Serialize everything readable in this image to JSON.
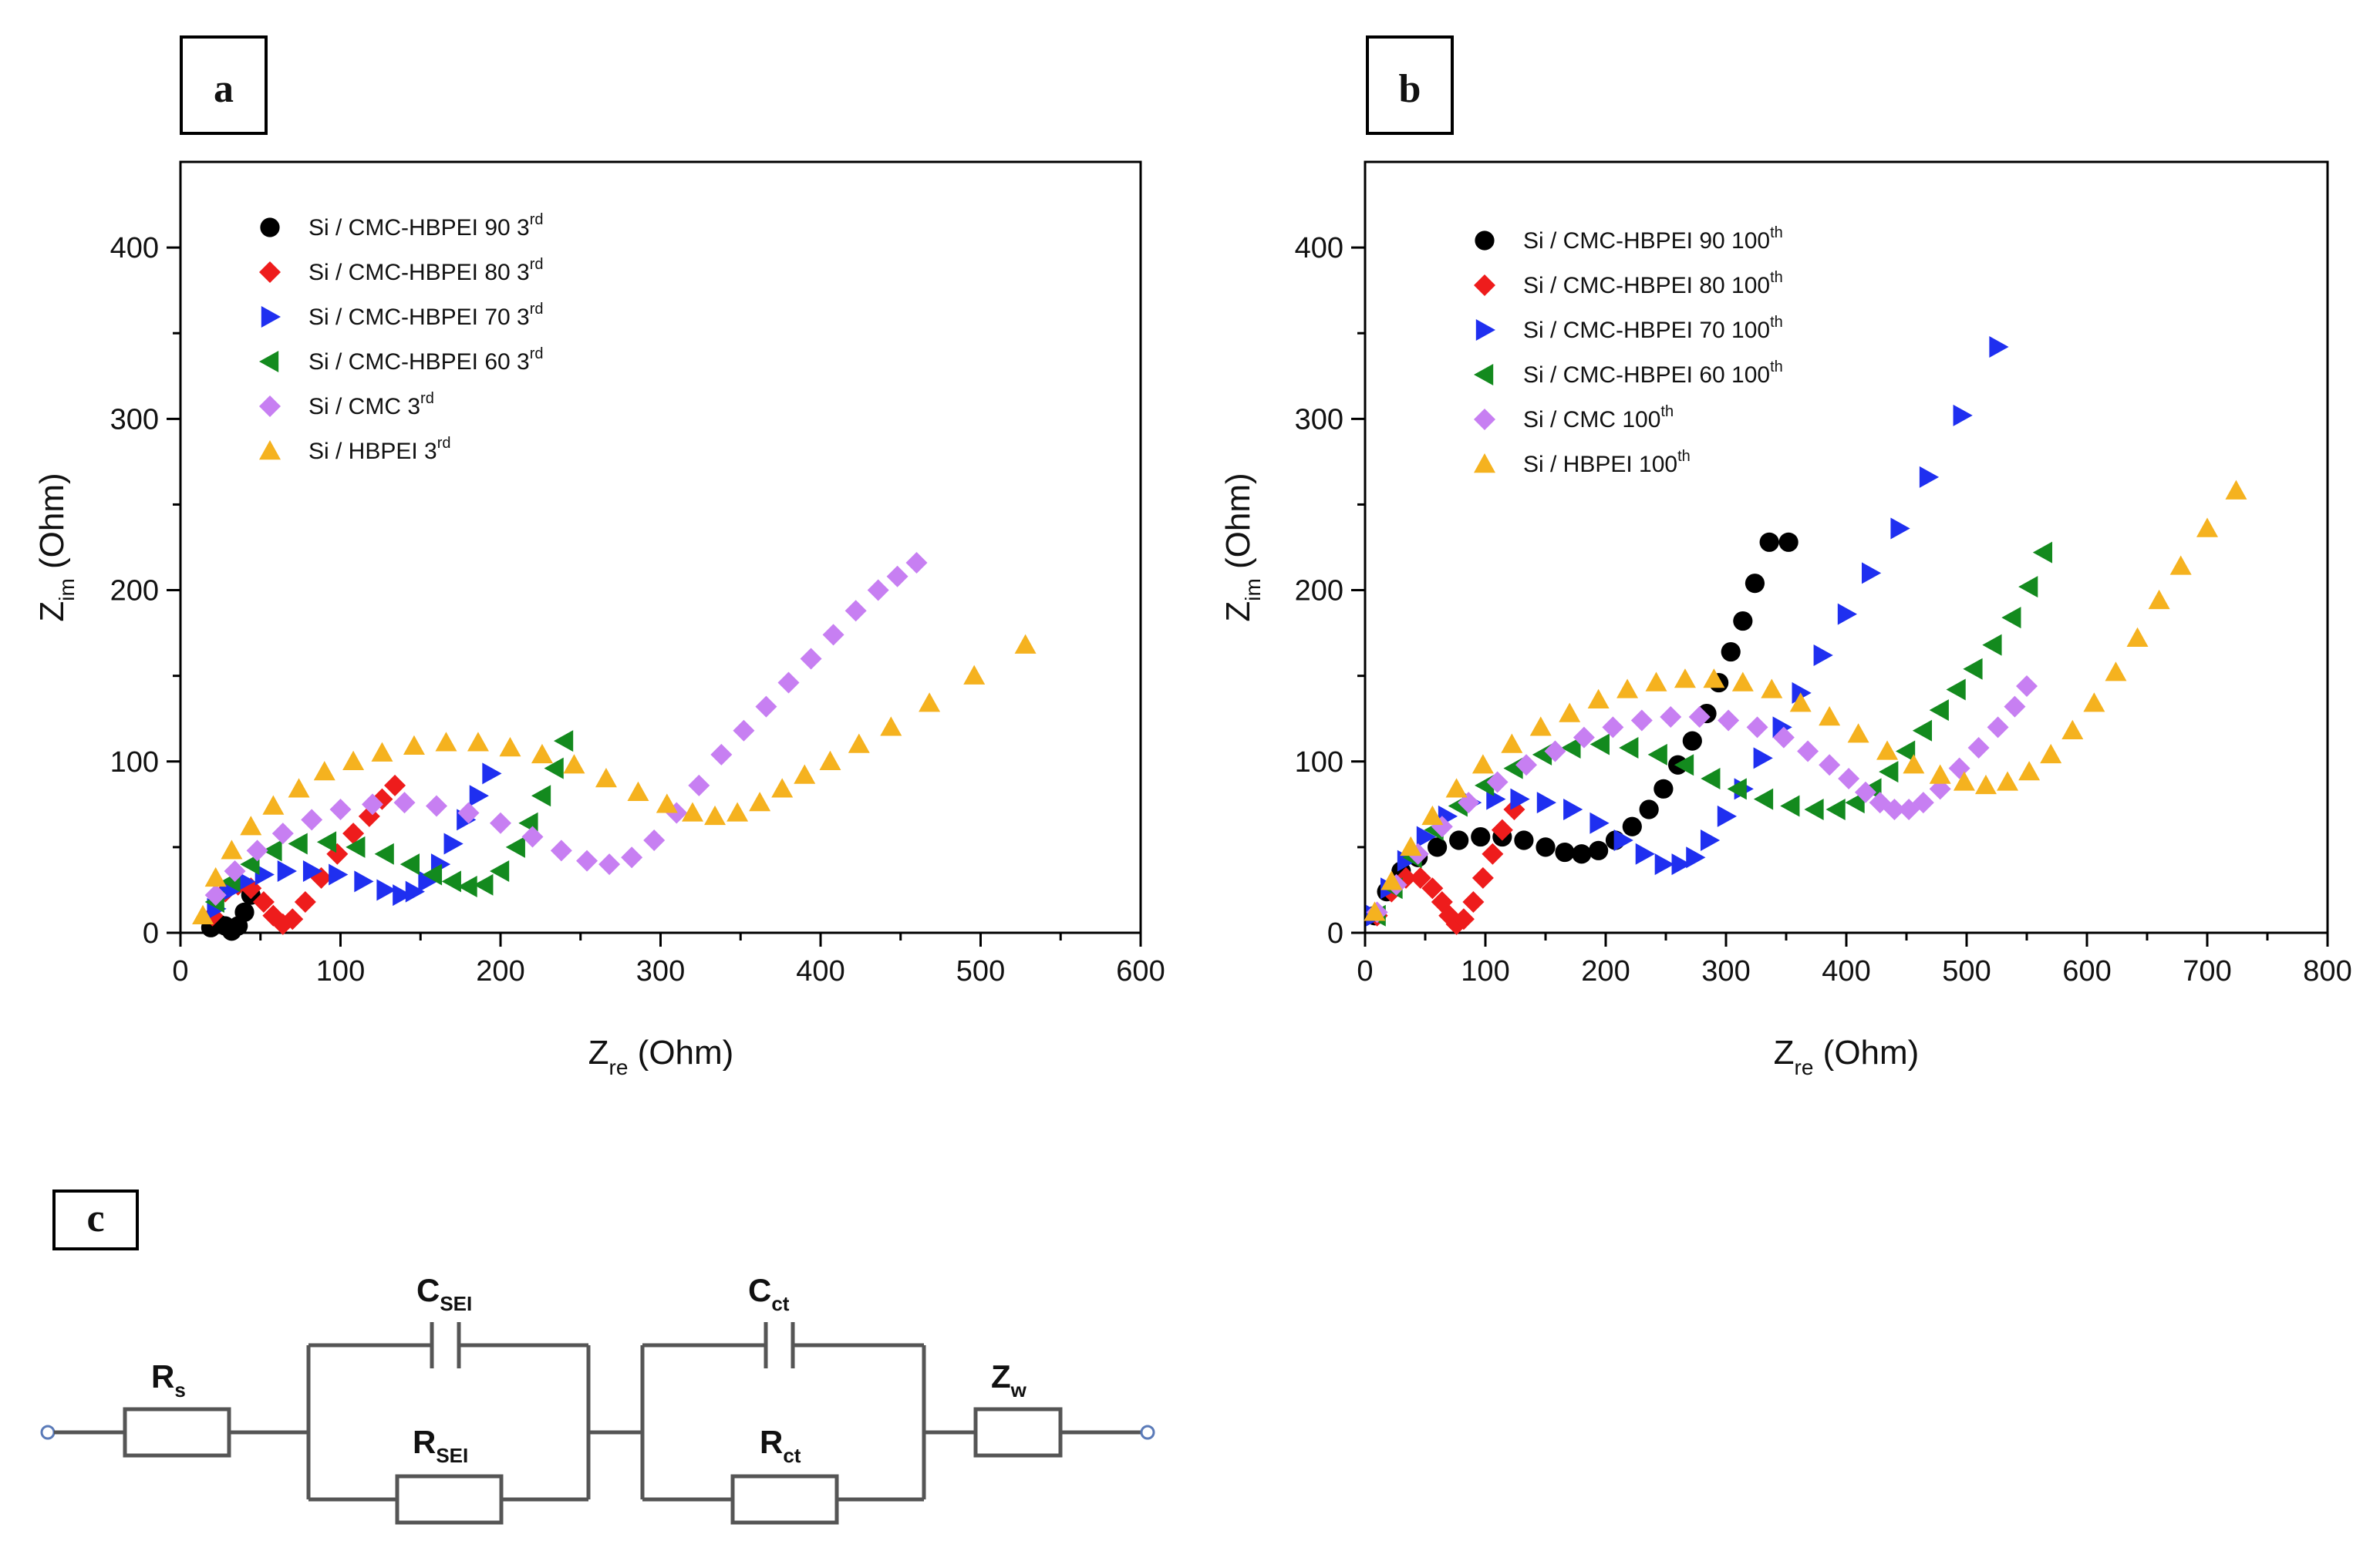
{
  "panels": [
    {
      "id": "a",
      "label": "a"
    },
    {
      "id": "b",
      "label": "b"
    },
    {
      "id": "c",
      "label": "c"
    }
  ],
  "colors": {
    "black": "#000000",
    "red": "#ee1c1c",
    "blue": "#1f2ff0",
    "green": "#138a1e",
    "violet": "#c77ff2",
    "orange": "#f5b21f"
  },
  "chart_data": [
    {
      "id": "a",
      "type": "scatter",
      "title": "",
      "xlabel": "Z",
      "xlabel_sub": "re",
      "xlabel_unit": " (Ohm)",
      "ylabel": "Z",
      "ylabel_sub": "im",
      "ylabel_unit": " (Ohm)",
      "xlim": [
        0,
        600
      ],
      "ylim": [
        0,
        450
      ],
      "xticks": [
        0,
        100,
        200,
        300,
        400,
        500,
        600
      ],
      "yticks": [
        0,
        100,
        200,
        300,
        400
      ],
      "legend_position": "top-left",
      "series": [
        {
          "name": "Si / CMC-HBPEI 90 3",
          "sup": "rd",
          "color": "black",
          "marker": "circle",
          "x": [
            19,
            24,
            28,
            32,
            36,
            40,
            44
          ],
          "y": [
            3,
            5,
            4,
            1,
            4,
            12,
            22
          ]
        },
        {
          "name": "Si / CMC-HBPEI 80 3",
          "sup": "rd",
          "color": "red",
          "marker": "diamond",
          "x": [
            20,
            28,
            36,
            44,
            52,
            58,
            64,
            70,
            78,
            88,
            98,
            108,
            118,
            126,
            134
          ],
          "y": [
            10,
            24,
            28,
            26,
            18,
            10,
            5,
            8,
            18,
            32,
            46,
            58,
            68,
            78,
            86
          ]
        },
        {
          "name": "Si / CMC-HBPEI 70 3",
          "sup": "rd",
          "color": "blue",
          "marker": "tri-right",
          "x": [
            22,
            30,
            40,
            52,
            66,
            82,
            98,
            114,
            128,
            138,
            146,
            154,
            162,
            170,
            178,
            186,
            194
          ],
          "y": [
            14,
            24,
            30,
            34,
            36,
            36,
            34,
            30,
            25,
            22,
            24,
            30,
            40,
            52,
            66,
            80,
            93
          ]
        },
        {
          "name": "Si / CMC-HBPEI 60 3",
          "sup": "rd",
          "color": "green",
          "marker": "tri-left",
          "x": [
            22,
            32,
            44,
            58,
            74,
            92,
            110,
            128,
            144,
            158,
            170,
            180,
            190,
            200,
            210,
            218,
            226,
            234,
            240
          ],
          "y": [
            18,
            30,
            40,
            48,
            52,
            53,
            50,
            46,
            40,
            34,
            30,
            27,
            28,
            36,
            50,
            64,
            80,
            96,
            112
          ]
        },
        {
          "name": "Si / CMC 3",
          "sup": "rd",
          "color": "violet",
          "marker": "diamond",
          "x": [
            22,
            34,
            48,
            64,
            82,
            100,
            120,
            140,
            160,
            180,
            200,
            220,
            238,
            254,
            268,
            282,
            296,
            310,
            324,
            338,
            352,
            366,
            380,
            394,
            408,
            422,
            436,
            448,
            460
          ],
          "y": [
            22,
            36,
            48,
            58,
            66,
            72,
            75,
            76,
            74,
            70,
            64,
            56,
            48,
            42,
            40,
            44,
            54,
            70,
            86,
            104,
            118,
            132,
            146,
            160,
            174,
            188,
            200,
            208,
            216
          ]
        },
        {
          "name": "Si / HBPEI 3",
          "sup": "rd",
          "color": "orange",
          "marker": "tri-up",
          "x": [
            14,
            22,
            32,
            44,
            58,
            74,
            90,
            108,
            126,
            146,
            166,
            186,
            206,
            226,
            246,
            266,
            286,
            304,
            320,
            334,
            348,
            362,
            376,
            390,
            406,
            424,
            444,
            468,
            496,
            528
          ],
          "y": [
            10,
            32,
            48,
            62,
            74,
            84,
            94,
            100,
            105,
            109,
            111,
            111,
            108,
            104,
            98,
            90,
            82,
            75,
            70,
            68,
            70,
            76,
            84,
            92,
            100,
            110,
            120,
            134,
            150,
            168
          ]
        }
      ]
    },
    {
      "id": "b",
      "type": "scatter",
      "title": "",
      "xlabel": "Z",
      "xlabel_sub": "re",
      "xlabel_unit": " (Ohm)",
      "ylabel": "Z",
      "ylabel_sub": "im",
      "ylabel_unit": " (Ohm)",
      "xlim": [
        0,
        800
      ],
      "ylim": [
        0,
        450
      ],
      "xticks": [
        0,
        100,
        200,
        300,
        400,
        500,
        600,
        700,
        800
      ],
      "yticks": [
        0,
        100,
        200,
        300,
        400
      ],
      "legend_position": "top-left",
      "series": [
        {
          "name": "Si / CMC-HBPEI 90 100",
          "sup": "th",
          "color": "black",
          "marker": "circle",
          "x": [
            8,
            18,
            30,
            44,
            60,
            78,
            96,
            114,
            132,
            150,
            166,
            180,
            194,
            208,
            222,
            236,
            248,
            260,
            272,
            284,
            294,
            304,
            314,
            324,
            336,
            352
          ],
          "y": [
            10,
            24,
            36,
            44,
            50,
            54,
            56,
            56,
            54,
            50,
            47,
            46,
            48,
            54,
            62,
            72,
            84,
            98,
            112,
            128,
            146,
            164,
            182,
            204,
            228,
            228
          ]
        },
        {
          "name": "Si / CMC-HBPEI 80 100",
          "sup": "th",
          "color": "red",
          "marker": "diamond",
          "x": [
            10,
            22,
            34,
            46,
            56,
            64,
            70,
            76,
            82,
            90,
            98,
            106,
            114,
            124
          ],
          "y": [
            10,
            24,
            32,
            32,
            26,
            18,
            10,
            5,
            8,
            18,
            32,
            46,
            60,
            72
          ]
        },
        {
          "name": "Si / CMC-HBPEI 70 100",
          "sup": "th",
          "color": "blue",
          "marker": "tri-right",
          "x": [
            8,
            20,
            34,
            50,
            68,
            88,
            108,
            128,
            150,
            172,
            194,
            214,
            232,
            248,
            262,
            274,
            286,
            300,
            314,
            330,
            346,
            362,
            380,
            400,
            420,
            444,
            468,
            496,
            526
          ],
          "y": [
            10,
            26,
            42,
            56,
            68,
            76,
            78,
            78,
            76,
            72,
            64,
            54,
            46,
            40,
            40,
            44,
            54,
            68,
            84,
            102,
            120,
            140,
            162,
            186,
            210,
            236,
            266,
            302,
            342
          ]
        },
        {
          "name": "Si / CMC-HBPEI 60 100",
          "sup": "th",
          "color": "green",
          "marker": "tri-left",
          "x": [
            10,
            24,
            40,
            58,
            78,
            100,
            124,
            148,
            172,
            196,
            220,
            244,
            266,
            288,
            310,
            332,
            354,
            374,
            392,
            408,
            422,
            436,
            450,
            464,
            478,
            492,
            506,
            522,
            538,
            552,
            564
          ],
          "y": [
            10,
            26,
            44,
            60,
            74,
            86,
            96,
            104,
            108,
            110,
            108,
            104,
            98,
            90,
            84,
            78,
            74,
            72,
            72,
            76,
            84,
            94,
            106,
            118,
            130,
            142,
            154,
            168,
            184,
            202,
            222
          ]
        },
        {
          "name": "Si / CMC 100",
          "sup": "th",
          "color": "violet",
          "marker": "diamond",
          "x": [
            10,
            26,
            44,
            64,
            86,
            110,
            134,
            158,
            182,
            206,
            230,
            254,
            278,
            302,
            326,
            348,
            368,
            386,
            402,
            416,
            428,
            440,
            452,
            464,
            478,
            494,
            510,
            526,
            540,
            550
          ],
          "y": [
            12,
            28,
            46,
            62,
            76,
            88,
            98,
            106,
            114,
            120,
            124,
            126,
            126,
            124,
            120,
            114,
            106,
            98,
            90,
            82,
            76,
            72,
            72,
            76,
            84,
            96,
            108,
            120,
            132,
            144
          ]
        },
        {
          "name": "Si / HBPEI 100",
          "sup": "th",
          "color": "orange",
          "marker": "tri-up",
          "x": [
            8,
            22,
            38,
            56,
            76,
            98,
            122,
            146,
            170,
            194,
            218,
            242,
            266,
            290,
            314,
            338,
            362,
            386,
            410,
            434,
            456,
            478,
            498,
            516,
            534,
            552,
            570,
            588,
            606,
            624,
            642,
            660,
            678,
            700,
            724
          ],
          "y": [
            12,
            30,
            50,
            68,
            84,
            98,
            110,
            120,
            128,
            136,
            142,
            146,
            148,
            148,
            146,
            142,
            134,
            126,
            116,
            106,
            98,
            92,
            88,
            86,
            88,
            94,
            104,
            118,
            134,
            152,
            172,
            194,
            214,
            236,
            258
          ]
        }
      ]
    }
  ],
  "circuit": {
    "components": [
      {
        "name": "Rs",
        "label": "R",
        "sub": "s"
      },
      {
        "name": "Csei",
        "label": "C",
        "sub": "SEI"
      },
      {
        "name": "Rsei",
        "label": "R",
        "sub": "SEI"
      },
      {
        "name": "Cct",
        "label": "C",
        "sub": "ct"
      },
      {
        "name": "Rct",
        "label": "R",
        "sub": "ct"
      },
      {
        "name": "Zw",
        "label": "Z",
        "sub": "w"
      }
    ]
  }
}
